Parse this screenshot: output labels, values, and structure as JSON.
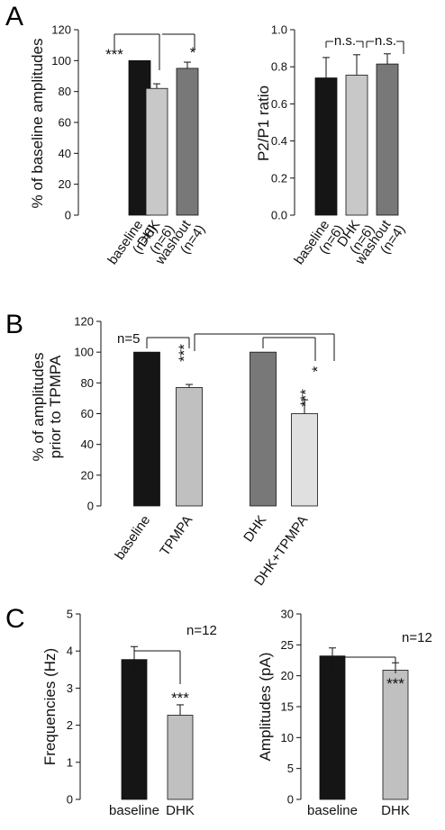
{
  "figure": {
    "panel_labels": [
      "A",
      "B",
      "C"
    ]
  },
  "chart_data": [
    {
      "id": "A1",
      "type": "bar",
      "categories": [
        "baseline\n(n=6)",
        "DHK\n(n=6)",
        "washout\n(n=4)"
      ],
      "values": [
        100,
        82,
        95
      ],
      "errors": [
        0,
        3,
        4
      ],
      "colors": [
        "#151515",
        "#c8c8c8",
        "#787878"
      ],
      "ylabel": "% of baseline amplitudes",
      "ylim": [
        0,
        120
      ],
      "yticks": [
        0,
        20,
        40,
        60,
        80,
        100,
        120
      ],
      "yticklabels": [
        "0",
        "20",
        "40",
        "60",
        "80",
        "100",
        "120"
      ],
      "stars": [
        {
          "bar": 0,
          "text": "***"
        },
        {
          "bar": 2,
          "text": "*"
        }
      ],
      "brackets": [
        {
          "from": 0,
          "to": 1
        },
        {
          "from": 1,
          "to": 2
        }
      ]
    },
    {
      "id": "A2",
      "type": "bar",
      "categories": [
        "baseline\n(n=6)",
        "DHK\n(n=6)",
        "washout\n(n=4)"
      ],
      "values": [
        0.74,
        0.755,
        0.815
      ],
      "errors": [
        0.11,
        0.11,
        0.055
      ],
      "colors": [
        "#151515",
        "#c8c8c8",
        "#787878"
      ],
      "ylabel": "P2/P1 ratio",
      "ylim": [
        0,
        1.0
      ],
      "yticks": [
        0,
        0.2,
        0.4,
        0.6,
        0.8,
        1.0
      ],
      "yticklabels": [
        "0.0",
        "0.2",
        "0.4",
        "0.6",
        "0.8",
        "1.0"
      ],
      "brackets": [
        {
          "from": 0,
          "to": 1,
          "label": "n.s."
        },
        {
          "from": 1,
          "to": 2,
          "label": "n.s."
        }
      ]
    },
    {
      "id": "B",
      "type": "bar",
      "categories": [
        "baseline",
        "TPMPA",
        "DHK",
        "DHK+TPMPA"
      ],
      "values": [
        100,
        77,
        100,
        60
      ],
      "errors": [
        0,
        2,
        0,
        9
      ],
      "colors": [
        "#151515",
        "#c0c0c0",
        "#787878",
        "#e0e0e0"
      ],
      "ylabel": "% of amplitudes\nprior to TPMPA",
      "ylim": [
        0,
        120
      ],
      "yticks": [
        0,
        20,
        40,
        60,
        80,
        100,
        120
      ],
      "yticklabels": [
        "0",
        "20",
        "40",
        "60",
        "80",
        "100",
        "120"
      ],
      "annotation": "n=5",
      "stars": [
        {
          "bar": 1,
          "text": "***"
        },
        {
          "bar": 3,
          "text": "***"
        },
        {
          "bar": 3,
          "text": "*"
        }
      ],
      "brackets": [
        {
          "from": 0,
          "to": 1
        },
        {
          "from": 2,
          "to": 3
        },
        {
          "from": 1,
          "to": 3
        }
      ]
    },
    {
      "id": "C1",
      "type": "bar",
      "categories": [
        "baseline",
        "DHK"
      ],
      "values": [
        3.77,
        2.27
      ],
      "errors": [
        0.35,
        0.28
      ],
      "colors": [
        "#151515",
        "#c0c0c0"
      ],
      "ylabel": "Frequencies (Hz)",
      "ylim": [
        0,
        5
      ],
      "yticks": [
        0,
        1,
        2,
        3,
        4,
        5
      ],
      "yticklabels": [
        "0",
        "1",
        "2",
        "3",
        "4",
        "5"
      ],
      "annotation": "n=12",
      "stars": [
        {
          "bar": 1,
          "text": "***"
        }
      ],
      "brackets": [
        {
          "from": 0,
          "to": 1
        }
      ]
    },
    {
      "id": "C2",
      "type": "bar",
      "categories": [
        "baseline",
        "DHK"
      ],
      "values": [
        23.2,
        20.9
      ],
      "errors": [
        1.3,
        1.2
      ],
      "colors": [
        "#151515",
        "#c0c0c0"
      ],
      "ylabel": "Amplitudes (pA)",
      "ylim": [
        0,
        30
      ],
      "yticks": [
        0,
        5,
        10,
        15,
        20,
        25,
        30
      ],
      "yticklabels": [
        "0",
        "5",
        "10",
        "15",
        "20",
        "25",
        "30"
      ],
      "annotation": "n=12",
      "stars": [
        {
          "bar": 1,
          "text": "***"
        }
      ],
      "brackets": [
        {
          "from": 0,
          "to": 1
        }
      ]
    }
  ]
}
